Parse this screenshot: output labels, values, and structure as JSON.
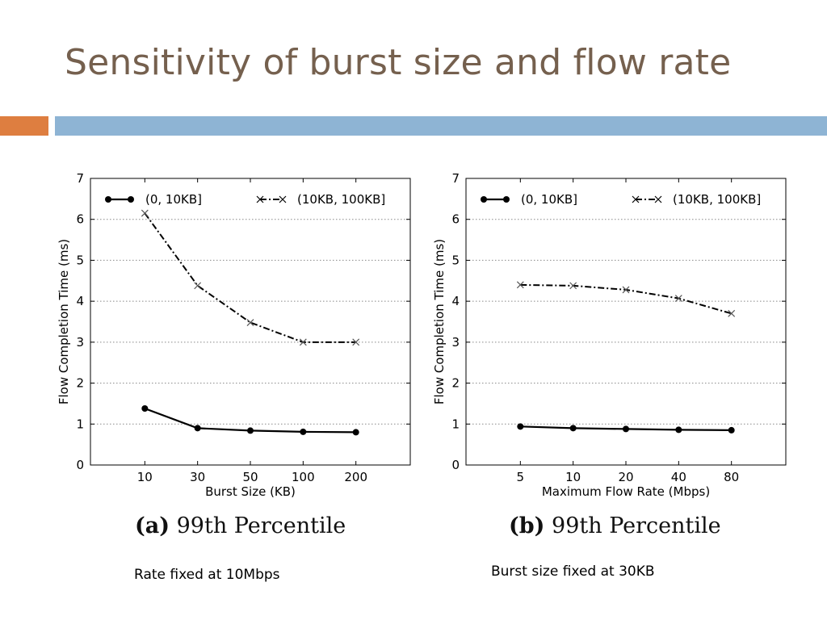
{
  "slide": {
    "title": "Sensitivity of burst size and flow rate",
    "accent_orange": "#de7e40",
    "accent_blue": "#8eb4d4",
    "title_color": "#75604e"
  },
  "captions": {
    "a_label": "(a)",
    "a_text": " 99th Percentile",
    "b_label": "(b)",
    "b_text": " 99th Percentile"
  },
  "notes": {
    "a": "Rate fixed at 10Mbps",
    "b": "Burst size fixed at 30KB"
  },
  "chart_data": [
    {
      "type": "line",
      "xlabel": "Burst Size (KB)",
      "ylabel": "Flow Completion Time (ms)",
      "categories": [
        "10",
        "30",
        "50",
        "100",
        "200"
      ],
      "ylim": [
        0,
        7
      ],
      "yticks": [
        0,
        1,
        2,
        3,
        4,
        5,
        6,
        7
      ],
      "grid": "horizontal-dotted",
      "legend_position": "top",
      "series": [
        {
          "name": "(0, 10KB]",
          "style": "solid-dot",
          "color": "#000000",
          "values": [
            1.38,
            0.9,
            0.84,
            0.81,
            0.8
          ]
        },
        {
          "name": "(10KB, 100KB]",
          "style": "dashdot-x",
          "color": "#000000",
          "values": [
            6.15,
            4.38,
            3.48,
            3.0,
            3.0
          ]
        }
      ]
    },
    {
      "type": "line",
      "xlabel": "Maximum Flow Rate (Mbps)",
      "ylabel": "Flow Completion Time (ms)",
      "categories": [
        "5",
        "10",
        "20",
        "40",
        "80"
      ],
      "ylim": [
        0,
        7
      ],
      "yticks": [
        0,
        1,
        2,
        3,
        4,
        5,
        6,
        7
      ],
      "grid": "horizontal-dotted",
      "legend_position": "top",
      "series": [
        {
          "name": "(0, 10KB]",
          "style": "solid-dot",
          "color": "#000000",
          "values": [
            0.94,
            0.9,
            0.88,
            0.86,
            0.85
          ]
        },
        {
          "name": "(10KB, 100KB]",
          "style": "dashdot-x",
          "color": "#000000",
          "values": [
            4.4,
            4.38,
            4.28,
            4.07,
            3.7
          ]
        }
      ]
    }
  ]
}
